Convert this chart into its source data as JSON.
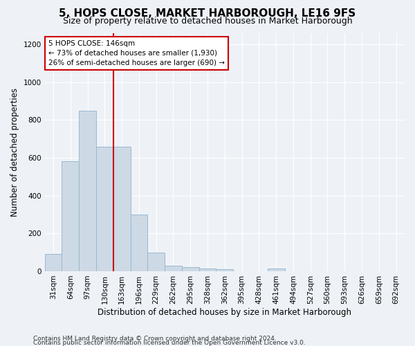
{
  "title": "5, HOPS CLOSE, MARKET HARBOROUGH, LE16 9FS",
  "subtitle": "Size of property relative to detached houses in Market Harborough",
  "xlabel": "Distribution of detached houses by size in Market Harborough",
  "ylabel": "Number of detached properties",
  "bar_color": "#cdd9e5",
  "bar_edge_color": "#9ab8d0",
  "categories": [
    "31sqm",
    "64sqm",
    "97sqm",
    "130sqm",
    "163sqm",
    "196sqm",
    "229sqm",
    "262sqm",
    "295sqm",
    "328sqm",
    "362sqm",
    "395sqm",
    "428sqm",
    "461sqm",
    "494sqm",
    "527sqm",
    "560sqm",
    "593sqm",
    "626sqm",
    "659sqm",
    "692sqm"
  ],
  "values": [
    90,
    580,
    850,
    660,
    660,
    300,
    100,
    30,
    20,
    15,
    10,
    0,
    0,
    15,
    0,
    0,
    0,
    0,
    0,
    0,
    0
  ],
  "ylim": [
    0,
    1260
  ],
  "yticks": [
    0,
    200,
    400,
    600,
    800,
    1000,
    1200
  ],
  "vline_x_index": 3.5,
  "vline_color": "#cc0000",
  "annotation_text": "5 HOPS CLOSE: 146sqm\n← 73% of detached houses are smaller (1,930)\n26% of semi-detached houses are larger (690) →",
  "footer_line1": "Contains HM Land Registry data © Crown copyright and database right 2024.",
  "footer_line2": "Contains public sector information licensed under the Open Government Licence v3.0.",
  "bg_color": "#eef2f7",
  "grid_color": "#ffffff",
  "title_fontsize": 11,
  "subtitle_fontsize": 9,
  "xlabel_fontsize": 8.5,
  "ylabel_fontsize": 8.5,
  "tick_fontsize": 7.5,
  "footer_fontsize": 6.5
}
